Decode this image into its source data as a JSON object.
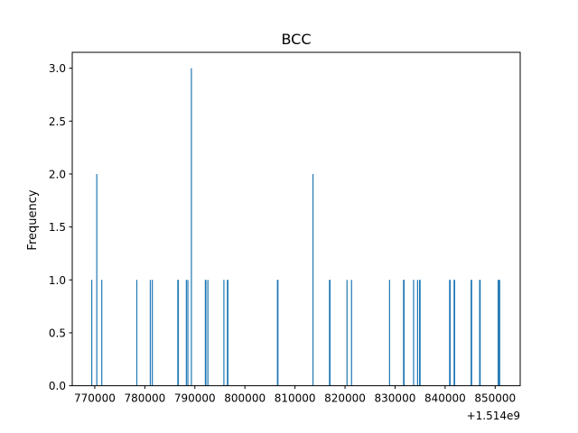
{
  "chart_data": {
    "type": "bar",
    "title": "BCC",
    "xlabel": "",
    "ylabel": "Frequency",
    "x_offset_label": "+1.514e9",
    "xlim": [
      765500,
      855000
    ],
    "ylim": [
      0,
      3.15
    ],
    "x_ticks": [
      770000,
      780000,
      790000,
      800000,
      810000,
      820000,
      830000,
      840000,
      850000
    ],
    "x_tick_labels": [
      "770000",
      "780000",
      "790000",
      "800000",
      "810000",
      "820000",
      "830000",
      "840000",
      "850000"
    ],
    "y_ticks": [
      0,
      0.5,
      1,
      1.5,
      2,
      2.5,
      3
    ],
    "y_tick_labels": [
      "0.0",
      "0.5",
      "1.0",
      "1.5",
      "2.0",
      "2.5",
      "3.0"
    ],
    "bar_color": "#1f77b4",
    "grid": false,
    "bars": [
      {
        "x": 769400,
        "y": 1
      },
      {
        "x": 770400,
        "y": 2
      },
      {
        "x": 771400,
        "y": 1
      },
      {
        "x": 778400,
        "y": 1
      },
      {
        "x": 781100,
        "y": 1
      },
      {
        "x": 781500,
        "y": 1
      },
      {
        "x": 786600,
        "y": 1
      },
      {
        "x": 786700,
        "y": 1
      },
      {
        "x": 788300,
        "y": 1
      },
      {
        "x": 788600,
        "y": 1
      },
      {
        "x": 789300,
        "y": 3
      },
      {
        "x": 792100,
        "y": 1
      },
      {
        "x": 792200,
        "y": 1
      },
      {
        "x": 792600,
        "y": 1
      },
      {
        "x": 795800,
        "y": 1
      },
      {
        "x": 796500,
        "y": 1
      },
      {
        "x": 796600,
        "y": 1
      },
      {
        "x": 806500,
        "y": 1
      },
      {
        "x": 806600,
        "y": 1
      },
      {
        "x": 813600,
        "y": 2
      },
      {
        "x": 816900,
        "y": 1
      },
      {
        "x": 817000,
        "y": 1
      },
      {
        "x": 820400,
        "y": 1
      },
      {
        "x": 821300,
        "y": 1
      },
      {
        "x": 828900,
        "y": 1
      },
      {
        "x": 831700,
        "y": 1
      },
      {
        "x": 831800,
        "y": 1
      },
      {
        "x": 833700,
        "y": 1
      },
      {
        "x": 834500,
        "y": 1
      },
      {
        "x": 834900,
        "y": 1
      },
      {
        "x": 835000,
        "y": 1
      },
      {
        "x": 840900,
        "y": 1
      },
      {
        "x": 841000,
        "y": 1
      },
      {
        "x": 841800,
        "y": 1
      },
      {
        "x": 841900,
        "y": 1
      },
      {
        "x": 845200,
        "y": 1
      },
      {
        "x": 845300,
        "y": 1
      },
      {
        "x": 846900,
        "y": 1
      },
      {
        "x": 847000,
        "y": 1
      },
      {
        "x": 850600,
        "y": 1
      },
      {
        "x": 850700,
        "y": 1
      },
      {
        "x": 850900,
        "y": 1
      }
    ]
  }
}
